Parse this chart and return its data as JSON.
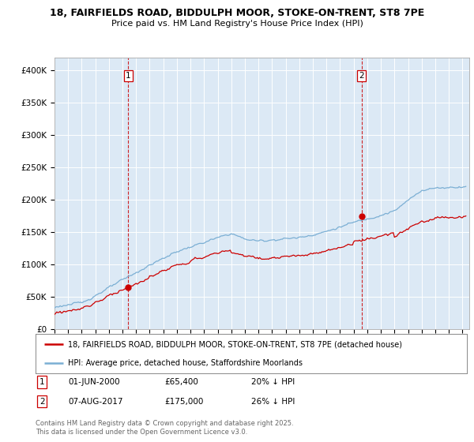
{
  "title_line1": "18, FAIRFIELDS ROAD, BIDDULPH MOOR, STOKE-ON-TRENT, ST8 7PE",
  "title_line2": "Price paid vs. HM Land Registry's House Price Index (HPI)",
  "ylabel_ticks": [
    "£0",
    "£50K",
    "£100K",
    "£150K",
    "£200K",
    "£250K",
    "£300K",
    "£350K",
    "£400K"
  ],
  "ytick_values": [
    0,
    50000,
    100000,
    150000,
    200000,
    250000,
    300000,
    350000,
    400000
  ],
  "ylim": [
    0,
    420000
  ],
  "xlim_start": 1995.0,
  "xlim_end": 2025.5,
  "hpi_color": "#7BAFD4",
  "price_color": "#CC0000",
  "vline_color": "#CC0000",
  "marker1_x": 2000.42,
  "marker1_y": 65400,
  "marker2_x": 2017.58,
  "marker2_y": 175000,
  "legend_line1": "18, FAIRFIELDS ROAD, BIDDULPH MOOR, STOKE-ON-TRENT, ST8 7PE (detached house)",
  "legend_line2": "HPI: Average price, detached house, Staffordshire Moorlands",
  "note1_label": "1",
  "note1_date": "01-JUN-2000",
  "note1_price": "£65,400",
  "note1_change": "20% ↓ HPI",
  "note2_label": "2",
  "note2_date": "07-AUG-2017",
  "note2_price": "£175,000",
  "note2_change": "26% ↓ HPI",
  "footer": "Contains HM Land Registry data © Crown copyright and database right 2025.\nThis data is licensed under the Open Government Licence v3.0.",
  "background_color": "#ffffff",
  "plot_bg_color": "#dce9f5",
  "grid_color": "#ffffff"
}
